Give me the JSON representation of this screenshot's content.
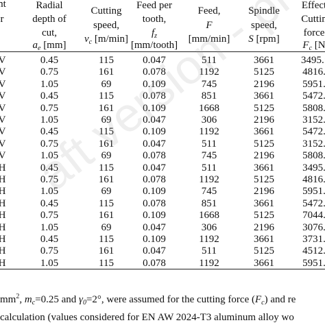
{
  "table": {
    "header": [
      [
        [
          "n",
          "t"
        ],
        [
          "r"
        ]
      ],
      [
        [
          "Radial"
        ],
        [
          "depth of"
        ],
        [
          "cut,"
        ],
        [
          {
            "text": "a",
            "style": "italic"
          },
          {
            "text": "e",
            "style": "sub"
          },
          {
            "text": " [mm]"
          }
        ]
      ],
      [
        [
          "Cutting"
        ],
        [
          "speed,"
        ],
        [
          {
            "text": "v",
            "style": "italic"
          },
          {
            "text": "c",
            "style": "sub"
          },
          {
            "text": " [m/min]"
          }
        ]
      ],
      [
        [
          "Feed per"
        ],
        [
          "tooth,"
        ],
        [
          {
            "text": "f",
            "style": "italic"
          },
          {
            "text": "z",
            "style": "sub"
          }
        ],
        [
          "[mm/tooth]"
        ]
      ],
      [
        [
          "Feed,"
        ],
        [
          {
            "text": "F",
            "style": "italic"
          }
        ],
        [
          "[mm/min]"
        ]
      ],
      [
        [
          "Spindle"
        ],
        [
          "speed,"
        ],
        [
          {
            "text": "S",
            "style": "italic"
          },
          {
            "text": " [rpm]"
          }
        ]
      ],
      [
        [
          "Effect"
        ],
        [
          "Cuttin"
        ],
        [
          "force"
        ],
        [
          {
            "text": "F",
            "style": "italic"
          },
          {
            "text": "c",
            "style": "sub"
          },
          {
            "text": " [N"
          }
        ]
      ]
    ],
    "rows": [
      [
        "V",
        0.45,
        115,
        0.047,
        511,
        3661,
        "3495.:"
      ],
      [
        "V",
        0.75,
        161,
        0.078,
        1192,
        5125,
        "4816."
      ],
      [
        "V",
        1.05,
        69,
        0.109,
        745,
        2196,
        "5951."
      ],
      [
        "V",
        0.45,
        115,
        0.078,
        851,
        3661,
        "5472."
      ],
      [
        "V",
        0.75,
        161,
        0.109,
        1668,
        5125,
        "5808."
      ],
      [
        "V",
        1.05,
        69,
        0.047,
        306,
        2196,
        "3152."
      ],
      [
        "V",
        0.45,
        115,
        0.109,
        1192,
        3661,
        "5472."
      ],
      [
        "V",
        0.75,
        161,
        0.047,
        511,
        5125,
        "3152."
      ],
      [
        "V",
        1.05,
        69,
        0.078,
        745,
        2196,
        "5808."
      ],
      [
        "H",
        0.45,
        115,
        0.047,
        511,
        3661,
        "3495."
      ],
      [
        "H",
        0.75,
        161,
        0.078,
        1192,
        5125,
        "4816."
      ],
      [
        "H",
        1.05,
        69,
        0.109,
        745,
        2196,
        "5951."
      ],
      [
        "H",
        0.45,
        115,
        0.078,
        851,
        3661,
        "5472."
      ],
      [
        "H",
        0.75,
        161,
        0.109,
        1668,
        5125,
        "7044."
      ],
      [
        "H",
        1.05,
        69,
        0.047,
        306,
        2196,
        "3076."
      ],
      [
        "H",
        0.45,
        115,
        0.109,
        1192,
        3661,
        "3731."
      ],
      [
        "H",
        0.75,
        161,
        0.047,
        511,
        5125,
        "4512."
      ],
      [
        "H",
        1.05,
        115,
        0.078,
        1192,
        3661,
        "5951."
      ]
    ],
    "footnote": [
      [
        {
          "text": "mm"
        },
        {
          "text": "2",
          "style": "sup"
        },
        {
          "text": ", "
        },
        {
          "text": "m",
          "style": "italic"
        },
        {
          "text": "c",
          "style": "sub"
        },
        {
          "text": "=0.25 and "
        },
        {
          "text": "γ",
          "style": "italic"
        },
        {
          "text": "0",
          "style": "sub"
        },
        {
          "text": "=2°, were assumed for the cutting force ("
        },
        {
          "text": "F",
          "style": "italic"
        },
        {
          "text": "c",
          "style": "sub"
        },
        {
          "text": ") and re"
        }
      ],
      [
        {
          "text": "calculation (values considered for EN AW 2024-T3 aluminum alloy wo"
        }
      ]
    ],
    "watermark": "aft version - pr"
  }
}
